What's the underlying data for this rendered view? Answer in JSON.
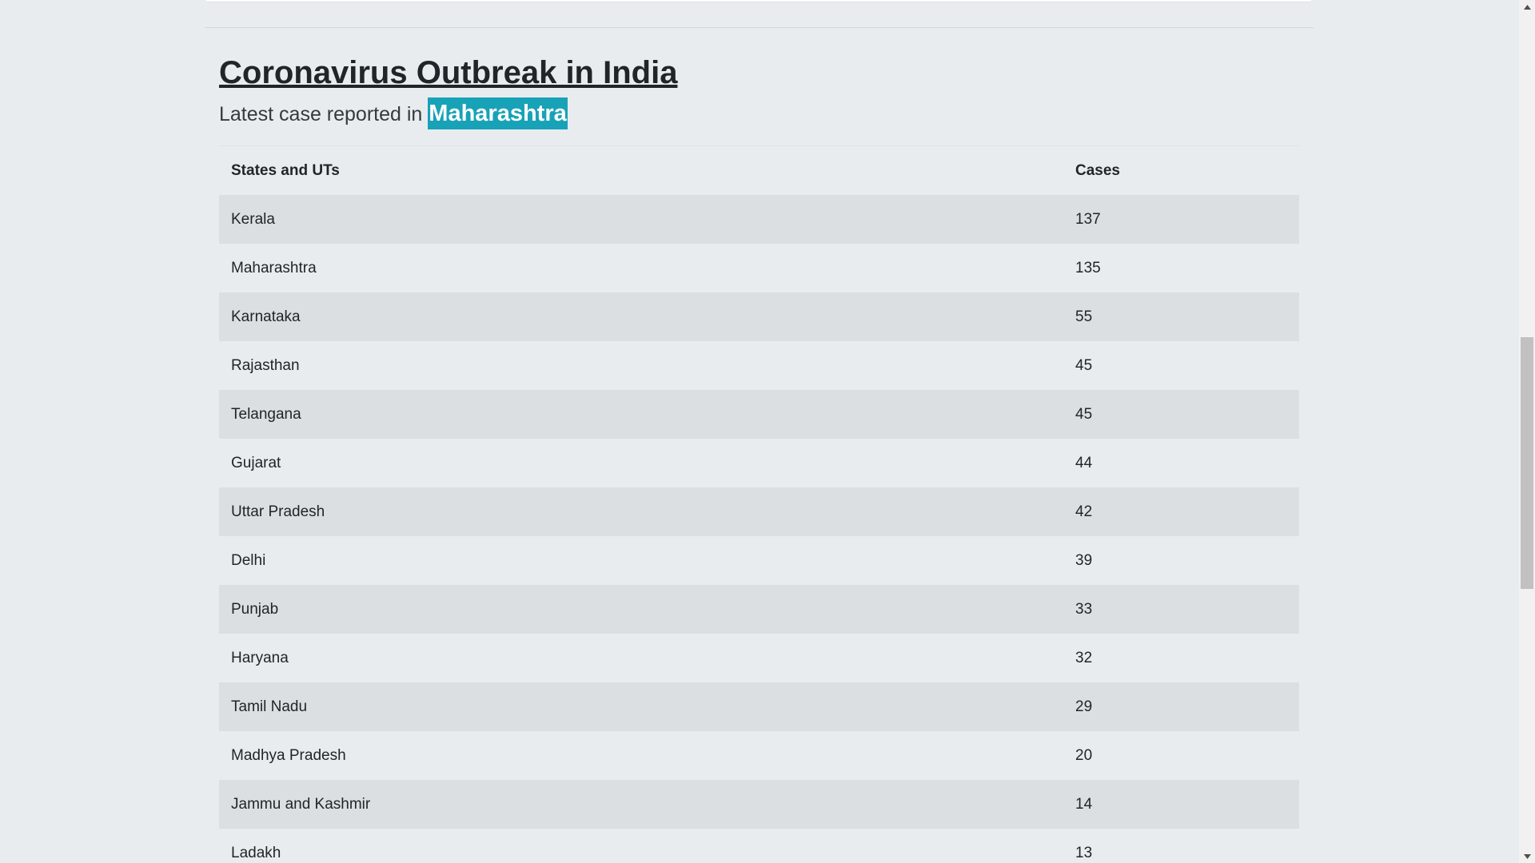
{
  "page": {
    "title": "Coronavirus Outbreak in India",
    "subtitle_prefix": "Latest case reported in",
    "latest_state": "Maharashtra"
  },
  "table": {
    "headers": {
      "state": "States and UTs",
      "cases": "Cases"
    },
    "rows": [
      {
        "state": "Kerala",
        "cases": "137"
      },
      {
        "state": "Maharashtra",
        "cases": "135"
      },
      {
        "state": "Karnataka",
        "cases": "55"
      },
      {
        "state": "Rajasthan",
        "cases": "45"
      },
      {
        "state": "Telangana",
        "cases": "45"
      },
      {
        "state": "Gujarat",
        "cases": "44"
      },
      {
        "state": "Uttar Pradesh",
        "cases": "42"
      },
      {
        "state": "Delhi",
        "cases": "39"
      },
      {
        "state": "Punjab",
        "cases": "33"
      },
      {
        "state": "Haryana",
        "cases": "32"
      },
      {
        "state": "Tamil Nadu",
        "cases": "29"
      },
      {
        "state": "Madhya Pradesh",
        "cases": "20"
      },
      {
        "state": "Jammu and Kashmir",
        "cases": "14"
      },
      {
        "state": "Ladakh",
        "cases": "13"
      }
    ]
  },
  "colors": {
    "page_background": "#e9ecef",
    "badge_background": "#17a2b8",
    "striped_row": "#dcdfe2"
  },
  "icons": {
    "scroll_up": "triangle-up-icon",
    "scroll_down": "triangle-down-icon"
  }
}
